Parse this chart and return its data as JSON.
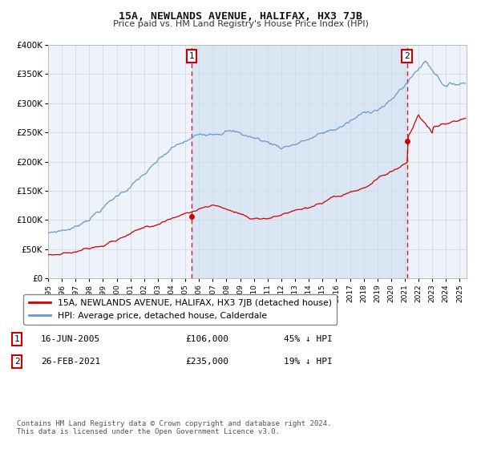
{
  "title": "15A, NEWLANDS AVENUE, HALIFAX, HX3 7JB",
  "subtitle": "Price paid vs. HM Land Registry's House Price Index (HPI)",
  "hpi_color": "#6699cc",
  "price_color": "#cc0000",
  "background_color": "#ffffff",
  "plot_bg_color": "#eef2fa",
  "grid_color": "#cccccc",
  "shade_color": "#ccddf0",
  "transaction1_date": 2005.46,
  "transaction1_price": 106000,
  "transaction2_date": 2021.15,
  "transaction2_price": 235000,
  "legend_line1": "15A, NEWLANDS AVENUE, HALIFAX, HX3 7JB (detached house)",
  "legend_line2": "HPI: Average price, detached house, Calderdale",
  "annotation1_date": "16-JUN-2005",
  "annotation1_price": "£106,000",
  "annotation1_pct": "45% ↓ HPI",
  "annotation2_date": "26-FEB-2021",
  "annotation2_price": "£235,000",
  "annotation2_pct": "19% ↓ HPI",
  "footer": "Contains HM Land Registry data © Crown copyright and database right 2024.\nThis data is licensed under the Open Government Licence v3.0.",
  "yticks": [
    0,
    50000,
    100000,
    150000,
    200000,
    250000,
    300000,
    350000,
    400000
  ],
  "ytick_labels": [
    "£0",
    "£50K",
    "£100K",
    "£150K",
    "£200K",
    "£250K",
    "£300K",
    "£350K",
    "£400K"
  ]
}
